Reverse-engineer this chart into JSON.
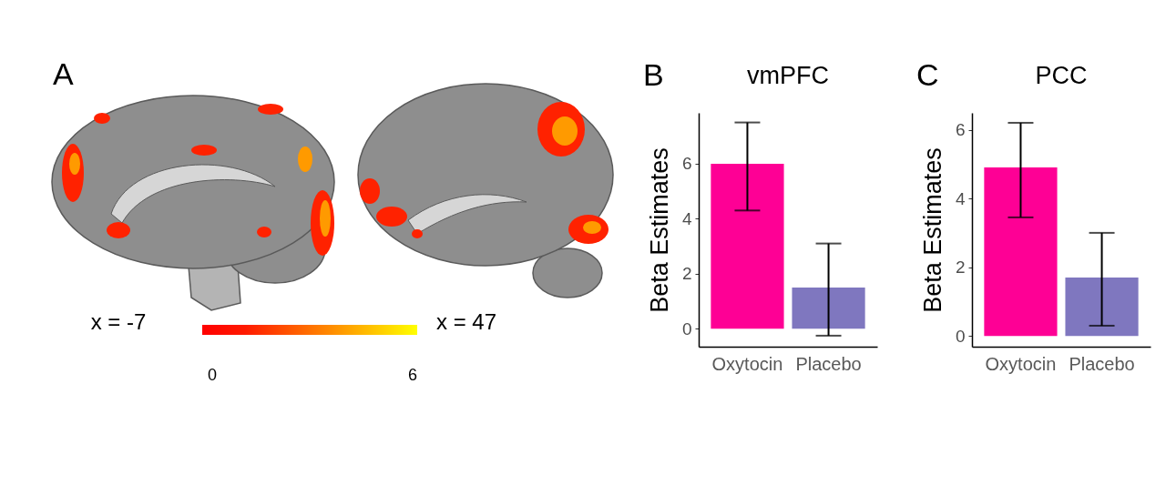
{
  "chart_data": [
    {
      "type": "other",
      "title": "A",
      "annotations": [
        "x = -7",
        "x = 47",
        "0",
        "6"
      ]
    },
    {
      "type": "bar",
      "title": "vmPFC",
      "annotations": [
        "B"
      ],
      "categories": [
        "Oxytocin",
        "Placebo"
      ],
      "values": [
        6.0,
        1.5
      ],
      "colors": [
        "#fe0095",
        "#7f77bf"
      ],
      "errors": [
        [
          4.3,
          7.5
        ],
        [
          -0.25,
          3.1
        ]
      ],
      "ylabel": "Beta Estimates",
      "ylim": [
        -0.65,
        7.85
      ],
      "yticks": [
        0,
        2,
        4,
        6
      ]
    },
    {
      "type": "bar",
      "title": "PCC",
      "annotations": [
        "C"
      ],
      "categories": [
        "Oxytocin",
        "Placebo"
      ],
      "values": [
        4.9,
        1.7
      ],
      "colors": [
        "#fe0095",
        "#7f77bf"
      ],
      "errors": [
        [
          3.45,
          6.2
        ],
        [
          0.3,
          3.0
        ]
      ],
      "ylabel": "Beta Estimates",
      "ylim": [
        -0.31,
        6.49
      ],
      "yticks": [
        0,
        2,
        4,
        6
      ]
    }
  ]
}
